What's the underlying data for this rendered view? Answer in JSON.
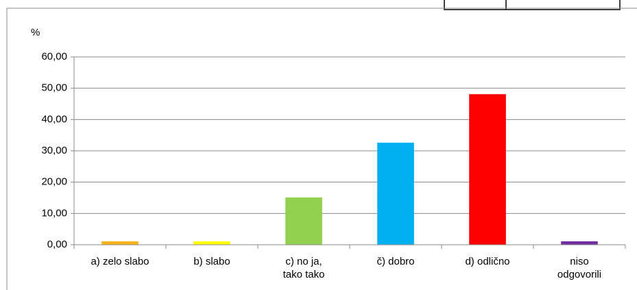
{
  "chart_data": {
    "type": "bar",
    "y_label": "%",
    "categories": [
      "a) zelo slabo",
      "b) slabo",
      "c) no ja,\ntako tako",
      "č) dobro",
      "d) odlično",
      "niso\nodgovorili"
    ],
    "values": [
      1.1,
      1.1,
      15.1,
      32.6,
      48.1,
      1.1
    ],
    "colors": [
      "#f5b31c",
      "#ffff00",
      "#92d050",
      "#00b0f0",
      "#ff0000",
      "#7030a0"
    ],
    "ylim": [
      0,
      60
    ],
    "yticks": [
      {
        "value": 0,
        "label": "0,00"
      },
      {
        "value": 10,
        "label": "10,00"
      },
      {
        "value": 20,
        "label": "20,00"
      },
      {
        "value": 30,
        "label": "30,00"
      },
      {
        "value": 40,
        "label": "40,00"
      },
      {
        "value": 50,
        "label": "50,00"
      },
      {
        "value": 60,
        "label": "60,00"
      }
    ],
    "grid": true
  }
}
